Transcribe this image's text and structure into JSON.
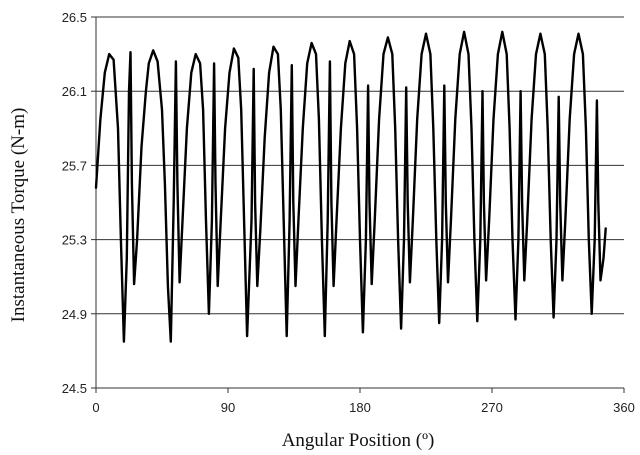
{
  "chart_data": {
    "type": "line",
    "xlabel": "Angular Position (º)",
    "ylabel": "Instantaneous Torque (N-m)",
    "xlim": [
      0,
      360
    ],
    "ylim": [
      24.5,
      26.5
    ],
    "x_ticks": [
      0,
      90,
      180,
      270,
      360
    ],
    "y_ticks": [
      24.5,
      24.9,
      25.3,
      25.7,
      26.1,
      26.5
    ],
    "grid": "horizontal",
    "legend": "none",
    "line_color": "#000000",
    "series": [
      {
        "points": [
          [
            0,
            25.58
          ],
          [
            3,
            25.95
          ],
          [
            6,
            26.2
          ],
          [
            9,
            26.3
          ],
          [
            12,
            26.27
          ],
          [
            15,
            25.9
          ],
          [
            17,
            25.3
          ],
          [
            19,
            24.75
          ],
          [
            21,
            25.2
          ],
          [
            22.5,
            26.1
          ],
          [
            23.5,
            26.31
          ],
          [
            24.5,
            25.6
          ],
          [
            26,
            25.06
          ],
          [
            28,
            25.3
          ],
          [
            31,
            25.8
          ],
          [
            34,
            26.1
          ],
          [
            36,
            26.25
          ],
          [
            39,
            26.32
          ],
          [
            42,
            26.26
          ],
          [
            45,
            26.0
          ],
          [
            47,
            25.6
          ],
          [
            49,
            25.05
          ],
          [
            51,
            24.75
          ],
          [
            53,
            25.5
          ],
          [
            54.5,
            26.26
          ],
          [
            55.5,
            25.6
          ],
          [
            57,
            25.07
          ],
          [
            59,
            25.4
          ],
          [
            62,
            25.9
          ],
          [
            65,
            26.2
          ],
          [
            68,
            26.3
          ],
          [
            71,
            26.25
          ],
          [
            73,
            26.0
          ],
          [
            75,
            25.4
          ],
          [
            77,
            24.9
          ],
          [
            79,
            25.4
          ],
          [
            80.5,
            26.25
          ],
          [
            81.5,
            25.6
          ],
          [
            83,
            25.05
          ],
          [
            85,
            25.4
          ],
          [
            88,
            25.9
          ],
          [
            91,
            26.2
          ],
          [
            94,
            26.33
          ],
          [
            97,
            26.28
          ],
          [
            99,
            26.0
          ],
          [
            101,
            25.4
          ],
          [
            103,
            24.78
          ],
          [
            106,
            25.4
          ],
          [
            107.5,
            26.22
          ],
          [
            108.5,
            25.5
          ],
          [
            110,
            25.05
          ],
          [
            112,
            25.35
          ],
          [
            115,
            25.85
          ],
          [
            118,
            26.2
          ],
          [
            121,
            26.34
          ],
          [
            124,
            26.3
          ],
          [
            126,
            26.0
          ],
          [
            128,
            25.4
          ],
          [
            130,
            24.78
          ],
          [
            132,
            25.4
          ],
          [
            133.5,
            26.24
          ],
          [
            134.5,
            25.5
          ],
          [
            136,
            25.05
          ],
          [
            138,
            25.4
          ],
          [
            141,
            25.9
          ],
          [
            144,
            26.25
          ],
          [
            147,
            26.36
          ],
          [
            150,
            26.3
          ],
          [
            152,
            25.95
          ],
          [
            154,
            25.3
          ],
          [
            156,
            24.78
          ],
          [
            158,
            25.4
          ],
          [
            159.5,
            26.26
          ],
          [
            160.5,
            25.5
          ],
          [
            162,
            25.05
          ],
          [
            164,
            25.4
          ],
          [
            167,
            25.9
          ],
          [
            170,
            26.25
          ],
          [
            173,
            26.37
          ],
          [
            176,
            26.3
          ],
          [
            178,
            25.9
          ],
          [
            180,
            25.3
          ],
          [
            182,
            24.8
          ],
          [
            184,
            25.3
          ],
          [
            185.5,
            26.13
          ],
          [
            186.5,
            25.5
          ],
          [
            188,
            25.06
          ],
          [
            190,
            25.4
          ],
          [
            193,
            25.95
          ],
          [
            196,
            26.3
          ],
          [
            199,
            26.39
          ],
          [
            202,
            26.3
          ],
          [
            204,
            25.9
          ],
          [
            206,
            25.3
          ],
          [
            208,
            24.82
          ],
          [
            210,
            25.3
          ],
          [
            211.5,
            26.12
          ],
          [
            212.5,
            25.5
          ],
          [
            214,
            25.07
          ],
          [
            216,
            25.4
          ],
          [
            219,
            25.95
          ],
          [
            222,
            26.3
          ],
          [
            225,
            26.41
          ],
          [
            228,
            26.3
          ],
          [
            230,
            25.9
          ],
          [
            232,
            25.3
          ],
          [
            234,
            24.85
          ],
          [
            236,
            25.3
          ],
          [
            237.5,
            26.13
          ],
          [
            238.5,
            25.5
          ],
          [
            240,
            25.07
          ],
          [
            242,
            25.4
          ],
          [
            245,
            25.95
          ],
          [
            248,
            26.3
          ],
          [
            251,
            26.42
          ],
          [
            254,
            26.3
          ],
          [
            256,
            25.9
          ],
          [
            258,
            25.3
          ],
          [
            260,
            24.86
          ],
          [
            262,
            25.3
          ],
          [
            263.5,
            26.1
          ],
          [
            264.5,
            25.5
          ],
          [
            266,
            25.08
          ],
          [
            268,
            25.4
          ],
          [
            271,
            25.95
          ],
          [
            274,
            26.3
          ],
          [
            277,
            26.42
          ],
          [
            280,
            26.3
          ],
          [
            282,
            25.9
          ],
          [
            284,
            25.3
          ],
          [
            286,
            24.87
          ],
          [
            288,
            25.3
          ],
          [
            289.5,
            26.1
          ],
          [
            290.5,
            25.5
          ],
          [
            292,
            25.08
          ],
          [
            294,
            25.4
          ],
          [
            297,
            25.95
          ],
          [
            300,
            26.3
          ],
          [
            303,
            26.41
          ],
          [
            306,
            26.3
          ],
          [
            308,
            25.9
          ],
          [
            310,
            25.3
          ],
          [
            312,
            24.88
          ],
          [
            314,
            25.3
          ],
          [
            315.5,
            26.07
          ],
          [
            316.5,
            25.5
          ],
          [
            318,
            25.08
          ],
          [
            320,
            25.4
          ],
          [
            323,
            25.95
          ],
          [
            326,
            26.3
          ],
          [
            329,
            26.41
          ],
          [
            332,
            26.3
          ],
          [
            334,
            25.9
          ],
          [
            336,
            25.3
          ],
          [
            338,
            24.9
          ],
          [
            340,
            25.3
          ],
          [
            341.5,
            26.05
          ],
          [
            342.5,
            25.5
          ],
          [
            344,
            25.08
          ],
          [
            346,
            25.2
          ],
          [
            347.5,
            25.36
          ]
        ]
      }
    ]
  }
}
